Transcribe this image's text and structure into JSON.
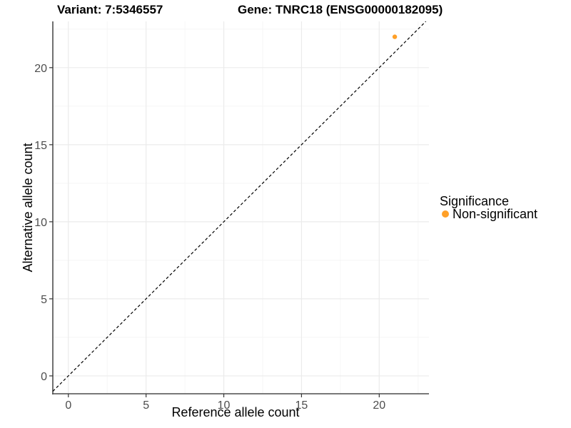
{
  "figure": {
    "background": "#FFFFFF"
  },
  "chart_data": {
    "type": "scatter",
    "title_left": "Variant: 7:5346557",
    "title_right": "Gene: TNRC18 (ENSG00000182095)",
    "xlabel": "Reference allele count",
    "ylabel": "Alternative allele count",
    "xlim": [
      -1.0,
      23.2
    ],
    "ylim": [
      -1.16,
      23.0
    ],
    "x_ticks": [
      0,
      5,
      10,
      15,
      20
    ],
    "y_ticks": [
      0,
      5,
      10,
      15,
      20
    ],
    "x_minor_ticks": [
      2.5,
      7.5,
      12.5,
      17.5,
      22.5
    ],
    "y_minor_ticks": [
      2.5,
      7.5,
      12.5,
      17.5,
      22.5
    ],
    "grid": true,
    "series": [
      {
        "name": "Non-significant",
        "color": "#FFA028",
        "points": [
          {
            "x": 21,
            "y": 22
          }
        ]
      }
    ],
    "reference_line": {
      "type": "identity",
      "slope": 1,
      "intercept": 0,
      "style": "dashed",
      "color": "#000000"
    },
    "legend": {
      "title": "Significance",
      "position": "right",
      "items": [
        {
          "label": "Non-significant",
          "color": "#FFA028"
        }
      ]
    }
  },
  "colors": {
    "grid_major": "#EBEBEB",
    "grid_minor": "#F5F5F5",
    "axis_line": "#4D4D4D",
    "tick_mark": "#333333",
    "tick_label": "#4D4D4D",
    "text": "#000000"
  }
}
